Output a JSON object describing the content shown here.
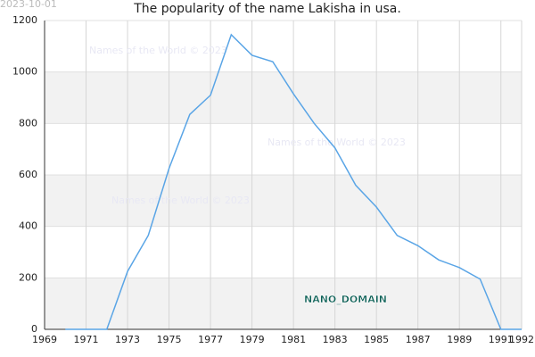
{
  "chart_data": {
    "type": "line",
    "title": "The popularity of the name Lakisha in usa.",
    "date": "2023-10-01",
    "watermarks": [
      "Names of the World © 2023",
      "Names of the World © 2023",
      "Names of the World © 2023"
    ],
    "annotation": "NANO_DOMAIN",
    "x": [
      1970,
      1971,
      1972,
      1973,
      1974,
      1975,
      1976,
      1977,
      1978,
      1979,
      1980,
      1981,
      1982,
      1983,
      1984,
      1985,
      1986,
      1987,
      1988,
      1989,
      1990,
      1991,
      1992
    ],
    "values": [
      0,
      0,
      0,
      225,
      365,
      625,
      835,
      910,
      1145,
      1065,
      1040,
      915,
      800,
      705,
      560,
      475,
      365,
      325,
      270,
      240,
      195,
      0,
      0
    ],
    "color": "#5aa5e6",
    "xlim": [
      1969,
      1992
    ],
    "xticks": [
      1969,
      1971,
      1973,
      1975,
      1977,
      1979,
      1981,
      1983,
      1985,
      1987,
      1989,
      1991,
      1992
    ],
    "ylim": [
      0,
      1200
    ],
    "yticks": [
      0,
      200,
      400,
      600,
      800,
      1000,
      1200
    ],
    "grid": true
  }
}
